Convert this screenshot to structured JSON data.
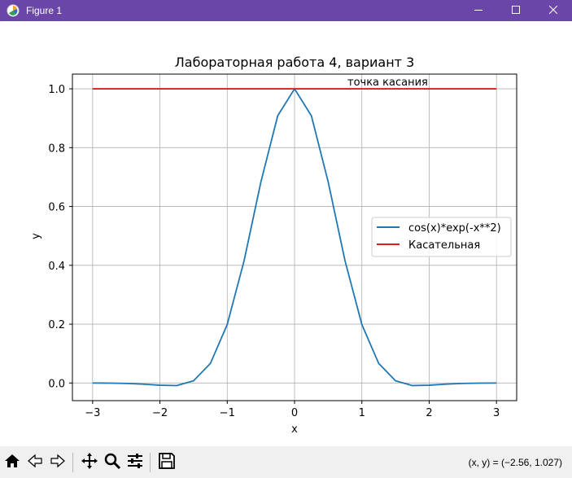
{
  "window": {
    "title": "Figure 1",
    "minimize_icon": "minimize-icon",
    "maximize_icon": "maximize-icon",
    "close_icon": "close-icon"
  },
  "toolbar": {
    "buttons": [
      "home-icon",
      "back-icon",
      "forward-icon",
      "pan-icon",
      "zoom-icon",
      "configure-subplots-icon",
      "save-icon"
    ],
    "coords_text": "(x, y) = (−2.56, 1.027)"
  },
  "colors": {
    "titlebar": "#6a46a8",
    "series_curve": "#1f77b4",
    "series_tangent": "#e01b1b",
    "grid": "#b0b0b0"
  },
  "chart_data": {
    "type": "line",
    "title": "Лабораторная работа 4, вариант 3",
    "xlabel": "x",
    "ylabel": "y",
    "xlim": [
      -3.3,
      3.3
    ],
    "ylim": [
      -0.06,
      1.05
    ],
    "grid": true,
    "legend_position": "center-right",
    "xticks": [
      -3,
      -2,
      -1,
      0,
      1,
      2,
      3
    ],
    "xtick_labels": [
      "−3",
      "−2",
      "−1",
      "0",
      "1",
      "2",
      "3"
    ],
    "yticks": [
      0.0,
      0.2,
      0.4,
      0.6,
      0.8,
      1.0
    ],
    "ytick_labels": [
      "0.0",
      "0.2",
      "0.4",
      "0.6",
      "0.8",
      "1.0"
    ],
    "series": [
      {
        "name": "cos(x)*exp(-x**2)",
        "color": "#1f77b4",
        "x": [
          -3.0,
          -2.75,
          -2.5,
          -2.25,
          -2.0,
          -1.75,
          -1.5,
          -1.25,
          -1.0,
          -0.75,
          -0.5,
          -0.25,
          0.0,
          0.25,
          0.5,
          0.75,
          1.0,
          1.25,
          1.5,
          1.75,
          2.0,
          2.25,
          2.5,
          2.75,
          3.0
        ],
        "y": [
          -0.0001,
          -0.0005,
          -0.0016,
          -0.004,
          -0.0076,
          -0.0087,
          0.0074,
          0.0665,
          0.1988,
          0.4152,
          0.6834,
          0.9085,
          1.0,
          0.9085,
          0.6834,
          0.4152,
          0.1988,
          0.0665,
          0.0074,
          -0.0087,
          -0.0076,
          -0.004,
          -0.0016,
          -0.0005,
          -0.0001
        ]
      },
      {
        "name": "Касательная",
        "color": "#e01b1b",
        "x": [
          -3,
          3
        ],
        "y": [
          1,
          1
        ]
      }
    ],
    "annotations": [
      {
        "text": "точка касания",
        "x": 0.78,
        "y": 1.01
      }
    ]
  }
}
